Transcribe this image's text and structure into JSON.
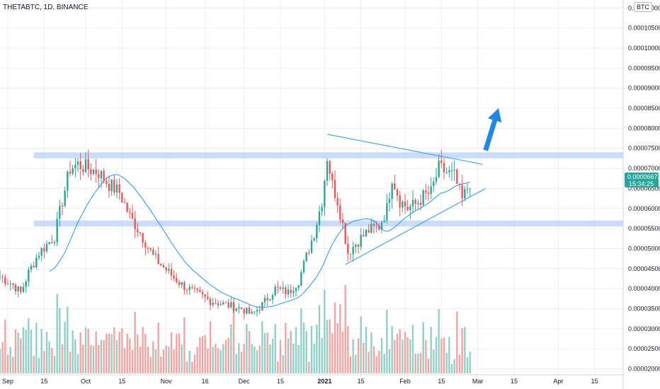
{
  "header": {
    "title": "THETABTC, 1D, BINANCE",
    "currency": "BTC"
  },
  "price_tag": {
    "value": "0.00006672",
    "countdown": "15:34:25"
  },
  "colors": {
    "up": "#26a69a",
    "down": "#ef5350",
    "ma": "#2196f3",
    "zone": "#bbd3f7",
    "trend": "#42a5f5",
    "arrow": "#1e88e5",
    "tag": "#26a69a",
    "volume_up": "#8fd1c8",
    "volume_down": "#f4a3a1",
    "grid": "#eceff2"
  },
  "chart_data": {
    "type": "candlestick",
    "title": "THETABTC, 1D, BINANCE",
    "y_ticks": [
      "0.00011000",
      "0.00010500",
      "0.00010000",
      "0.00009500",
      "0.00009000",
      "0.00008500",
      "0.00008000",
      "0.00007500",
      "0.00007000",
      "0.00006500",
      "0.00006000",
      "0.00005500",
      "0.00005000",
      "0.00004500",
      "0.00004000",
      "0.00003500",
      "0.00003000",
      "0.00002500",
      "0.00002000"
    ],
    "x_ticks": [
      {
        "label": "Sep",
        "date": "2020-09-01"
      },
      {
        "label": "15",
        "date": "2020-09-15"
      },
      {
        "label": "Oct",
        "date": "2020-10-01"
      },
      {
        "label": "15",
        "date": "2020-10-15"
      },
      {
        "label": "Nov",
        "date": "2020-11-01"
      },
      {
        "label": "16",
        "date": "2020-11-16"
      },
      {
        "label": "Dec",
        "date": "2020-12-01"
      },
      {
        "label": "15",
        "date": "2020-12-15"
      },
      {
        "label": "2021",
        "date": "2021-01-01"
      },
      {
        "label": "15",
        "date": "2021-01-15"
      },
      {
        "label": "Feb",
        "date": "2021-02-01"
      },
      {
        "label": "15",
        "date": "2021-02-15"
      },
      {
        "label": "Mar",
        "date": "2021-03-01"
      },
      {
        "label": "15",
        "date": "2021-03-15"
      },
      {
        "label": "Apr",
        "date": "2021-04-01"
      },
      {
        "label": "15",
        "date": "2021-04-15"
      }
    ],
    "close_keypoints": [
      [
        "2020-08-29",
        4.3e-05
      ],
      [
        "2020-09-03",
        4.1e-05
      ],
      [
        "2020-09-06",
        3.9e-05
      ],
      [
        "2020-09-09",
        4.4e-05
      ],
      [
        "2020-09-13",
        4.9e-05
      ],
      [
        "2020-09-16",
        5.1e-05
      ],
      [
        "2020-09-19",
        5.3e-05
      ],
      [
        "2020-09-22",
        6.2e-05
      ],
      [
        "2020-09-25",
        7e-05
      ],
      [
        "2020-09-28",
        7.1e-05
      ],
      [
        "2020-10-02",
        7e-05
      ],
      [
        "2020-10-06",
        6.9e-05
      ],
      [
        "2020-10-10",
        6.6e-05
      ],
      [
        "2020-10-14",
        6.4e-05
      ],
      [
        "2020-10-18",
        5.8e-05
      ],
      [
        "2020-10-22",
        5.4e-05
      ],
      [
        "2020-10-27",
        4.8e-05
      ],
      [
        "2020-11-02",
        4.4e-05
      ],
      [
        "2020-11-07",
        4.1e-05
      ],
      [
        "2020-11-12",
        3.9e-05
      ],
      [
        "2020-11-18",
        3.7e-05
      ],
      [
        "2020-11-24",
        3.6e-05
      ],
      [
        "2020-11-30",
        3.5e-05
      ],
      [
        "2020-12-04",
        3.35e-05
      ],
      [
        "2020-12-08",
        3.6e-05
      ],
      [
        "2020-12-13",
        4e-05
      ],
      [
        "2020-12-18",
        3.9e-05
      ],
      [
        "2020-12-22",
        4.2e-05
      ],
      [
        "2020-12-25",
        4.8e-05
      ],
      [
        "2020-12-28",
        5.4e-05
      ],
      [
        "2020-12-31",
        6.2e-05
      ],
      [
        "2021-01-02",
        7.3e-05
      ],
      [
        "2021-01-04",
        6.6e-05
      ],
      [
        "2021-01-06",
        6.2e-05
      ],
      [
        "2021-01-08",
        5.6e-05
      ],
      [
        "2021-01-10",
        4.9e-05
      ],
      [
        "2021-01-14",
        5.2e-05
      ],
      [
        "2021-01-18",
        5.45e-05
      ],
      [
        "2021-01-22",
        5.55e-05
      ],
      [
        "2021-01-25",
        6e-05
      ],
      [
        "2021-01-27",
        6.8e-05
      ],
      [
        "2021-01-30",
        6.2e-05
      ],
      [
        "2021-02-02",
        6e-05
      ],
      [
        "2021-02-05",
        6.1e-05
      ],
      [
        "2021-02-08",
        6.3e-05
      ],
      [
        "2021-02-11",
        6.4e-05
      ],
      [
        "2021-02-14",
        7e-05
      ],
      [
        "2021-02-17",
        6.9e-05
      ],
      [
        "2021-02-20",
        6.8e-05
      ],
      [
        "2021-02-23",
        6.2e-05
      ],
      [
        "2021-02-26",
        6.67e-05
      ]
    ],
    "levels": [
      {
        "name": "resistance-zone",
        "from": 7.25e-05,
        "to": 7.4e-05
      },
      {
        "name": "support-zone",
        "from": 5.55e-05,
        "to": 5.7e-05
      }
    ],
    "trendlines": [
      {
        "name": "upper-trendline",
        "from": [
          "2021-01-02",
          7.85e-05
        ],
        "to": [
          "2021-03-03",
          7.1e-05
        ]
      },
      {
        "name": "lower-trendline",
        "from": [
          "2021-01-09",
          4.6e-05
        ],
        "to": [
          "2021-03-04",
          6.5e-05
        ]
      }
    ],
    "arrow": {
      "from": [
        "2021-03-04",
        7.45e-05
      ],
      "to": [
        "2021-03-09",
        8.5e-05
      ]
    },
    "ylim": [
      1.85e-05,
      0.000112
    ],
    "xlim": [
      "2020-08-29",
      "2021-04-26"
    ]
  }
}
